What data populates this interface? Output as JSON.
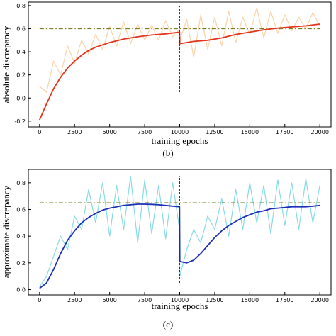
{
  "chart_data": [
    {
      "type": "line",
      "panel_caption": "(b)",
      "xlabel": "training epochs",
      "ylabel": "absolute discrepancy",
      "xlim": [
        -800,
        20800
      ],
      "ylim": [
        -0.25,
        0.83
      ],
      "xticks": [
        0,
        2500,
        5000,
        7500,
        10000,
        12500,
        15000,
        17500,
        20000
      ],
      "yticks": [
        -0.2,
        0.0,
        0.2,
        0.4,
        0.6,
        0.8
      ],
      "ytick_labels": [
        "-0.2",
        "0.0",
        "0.2",
        "0.4",
        "0.6",
        "0.8"
      ],
      "grid": false,
      "reference_line": {
        "y": 0.6,
        "style": "dash-dot",
        "color": "#7a7a1e"
      },
      "phase_boundary": {
        "x": 10000,
        "y_range": [
          0.05,
          0.8
        ],
        "style": "dashed",
        "color": "#333333"
      },
      "series": [
        {
          "role": "raw",
          "color": "#fcd3a8",
          "x": [
            0,
            500,
            1000,
            1500,
            2000,
            2500,
            3000,
            3500,
            4000,
            4500,
            5000,
            5500,
            6000,
            6500,
            7000,
            7500,
            8000,
            8500,
            9000,
            9500,
            9990,
            10010,
            10500,
            11000,
            11500,
            12000,
            12500,
            13000,
            13500,
            14000,
            14500,
            15000,
            15500,
            16000,
            16500,
            17000,
            17500,
            18000,
            18500,
            19000,
            19500,
            20000
          ],
          "values": [
            0.1,
            0.05,
            0.32,
            0.2,
            0.45,
            0.3,
            0.5,
            0.38,
            0.55,
            0.42,
            0.62,
            0.45,
            0.66,
            0.47,
            0.64,
            0.5,
            0.63,
            0.5,
            0.67,
            0.53,
            0.6,
            0.5,
            0.68,
            0.35,
            0.72,
            0.42,
            0.7,
            0.45,
            0.75,
            0.48,
            0.7,
            0.55,
            0.78,
            0.52,
            0.75,
            0.56,
            0.72,
            0.58,
            0.7,
            0.6,
            0.74,
            0.62
          ]
        },
        {
          "role": "smoothed",
          "color": "#e2341d",
          "x": [
            0,
            500,
            1000,
            1500,
            2000,
            2500,
            3000,
            3500,
            4000,
            4500,
            5000,
            6000,
            7000,
            8000,
            9000,
            9990,
            10010,
            10500,
            11000,
            12000,
            13000,
            14000,
            15000,
            16000,
            17000,
            18000,
            19000,
            20000
          ],
          "values": [
            -0.19,
            -0.05,
            0.08,
            0.18,
            0.26,
            0.32,
            0.37,
            0.41,
            0.44,
            0.46,
            0.48,
            0.51,
            0.53,
            0.545,
            0.555,
            0.57,
            0.47,
            0.48,
            0.49,
            0.5,
            0.52,
            0.55,
            0.57,
            0.59,
            0.605,
            0.615,
            0.625,
            0.64
          ]
        }
      ]
    },
    {
      "type": "line",
      "panel_caption": "(c)",
      "xlabel": "training epochs",
      "ylabel": "approximate discrepancy",
      "xlim": [
        -800,
        20800
      ],
      "ylim": [
        -0.04,
        0.9
      ],
      "xticks": [
        0,
        2500,
        5000,
        7500,
        10000,
        12500,
        15000,
        17500,
        20000
      ],
      "yticks": [
        0.0,
        0.2,
        0.4,
        0.6,
        0.8
      ],
      "ytick_labels": [
        "0.0",
        "0.2",
        "0.4",
        "0.6",
        "0.8"
      ],
      "grid": false,
      "reference_line": {
        "y": 0.65,
        "style": "dash-dot",
        "color": "#7a7a1e"
      },
      "phase_boundary": {
        "x": 10000,
        "y_range": [
          0.05,
          0.85
        ],
        "style": "dashed",
        "color": "#333333"
      },
      "series": [
        {
          "role": "raw",
          "color": "#88dbe6",
          "x": [
            0,
            500,
            1000,
            1500,
            2000,
            2500,
            3000,
            3500,
            4000,
            4500,
            5000,
            5500,
            6000,
            6500,
            7000,
            7500,
            8000,
            8500,
            9000,
            9500,
            9990,
            10010,
            10500,
            11000,
            11500,
            12000,
            12500,
            13000,
            13500,
            14000,
            14500,
            15000,
            15500,
            16000,
            16500,
            17000,
            17500,
            18000,
            18500,
            19000,
            19500,
            20000
          ],
          "values": [
            0.02,
            0.1,
            0.25,
            0.4,
            0.3,
            0.55,
            0.45,
            0.75,
            0.5,
            0.8,
            0.4,
            0.78,
            0.45,
            0.85,
            0.35,
            0.82,
            0.42,
            0.78,
            0.38,
            0.8,
            0.45,
            0.1,
            0.3,
            0.45,
            0.35,
            0.55,
            0.45,
            0.68,
            0.4,
            0.75,
            0.45,
            0.8,
            0.5,
            0.78,
            0.42,
            0.82,
            0.48,
            0.8,
            0.45,
            0.83,
            0.5,
            0.78
          ]
        },
        {
          "role": "smoothed",
          "color": "#1c2fb8",
          "x": [
            0,
            500,
            1000,
            1500,
            2000,
            2500,
            3000,
            3500,
            4000,
            4500,
            5000,
            5500,
            6000,
            6500,
            7000,
            7500,
            8000,
            8500,
            9000,
            9500,
            9990,
            10010,
            10500,
            11000,
            11500,
            12000,
            12500,
            13000,
            13500,
            14000,
            14500,
            15000,
            15500,
            16000,
            16500,
            17000,
            17500,
            18000,
            18500,
            19000,
            19500,
            20000
          ],
          "values": [
            0.01,
            0.05,
            0.15,
            0.27,
            0.37,
            0.44,
            0.5,
            0.54,
            0.57,
            0.595,
            0.61,
            0.62,
            0.63,
            0.635,
            0.64,
            0.64,
            0.638,
            0.635,
            0.63,
            0.625,
            0.62,
            0.21,
            0.2,
            0.22,
            0.27,
            0.33,
            0.39,
            0.44,
            0.48,
            0.51,
            0.54,
            0.56,
            0.58,
            0.59,
            0.605,
            0.61,
            0.615,
            0.62,
            0.62,
            0.62,
            0.625,
            0.63
          ]
        }
      ]
    }
  ]
}
